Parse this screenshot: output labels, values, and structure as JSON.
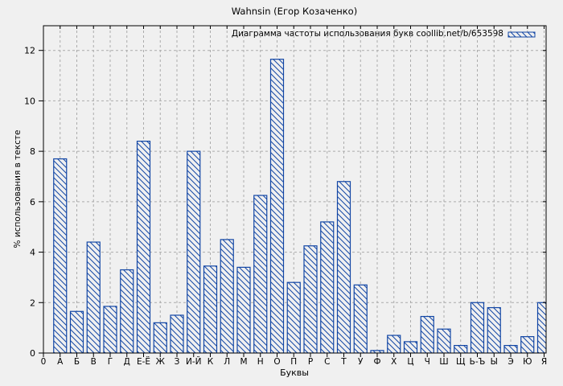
{
  "chart_data": {
    "type": "bar",
    "title": "Wahnsin (Егор Козаченко)",
    "xlabel": "Буквы",
    "ylabel": "% использования в тексте",
    "legend": "Диаграмма частоты использования букв coollib.net/b/653598",
    "legend_position": "top-right-inside",
    "categories": [
      "А",
      "Б",
      "В",
      "Г",
      "Д",
      "Е-Ё",
      "Ж",
      "З",
      "И-Й",
      "К",
      "Л",
      "М",
      "Н",
      "О",
      "П",
      "Р",
      "С",
      "Т",
      "У",
      "Ф",
      "Х",
      "Ц",
      "Ч",
      "Ш",
      "Щ",
      "Ь-Ъ",
      "Ы",
      "Э",
      "Ю",
      "Я"
    ],
    "values": [
      7.7,
      1.65,
      4.4,
      1.85,
      3.3,
      8.4,
      1.2,
      1.5,
      8.0,
      3.45,
      4.5,
      3.4,
      6.25,
      11.65,
      2.8,
      4.25,
      5.2,
      6.8,
      2.7,
      0.1,
      0.7,
      0.45,
      1.45,
      0.95,
      0.3,
      2.0,
      1.8,
      0.3,
      0.65,
      2.0
    ],
    "x_origin_label": "0",
    "yticks": [
      0,
      2,
      4,
      6,
      8,
      10,
      12
    ],
    "ylim": [
      0,
      13
    ],
    "grid": true,
    "hatch": "diagonal-backslash",
    "bar_color": "#1246a5",
    "background": "#f0f0f0",
    "grid_color": "#ababab",
    "axis_color": "#000000"
  }
}
